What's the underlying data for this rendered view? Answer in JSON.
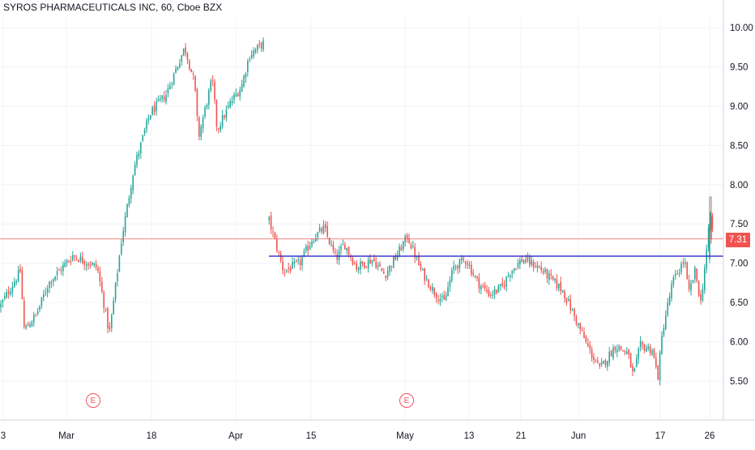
{
  "chart_data": {
    "type": "candlestick",
    "title": "SYROS PHARMACEUTICALS INC, 60, Cboe BZX",
    "y_axis": {
      "position": "right",
      "range": [
        5.3,
        10.15
      ],
      "ticks": [
        "10.00",
        "9.50",
        "9.00",
        "8.50",
        "8.00",
        "7.50",
        "7.00",
        "6.50",
        "6.00",
        "5.50"
      ]
    },
    "x_axis": {
      "ticks": [
        "3",
        "Mar",
        "18",
        "Apr",
        "15",
        "May",
        "13",
        "21",
        "Jun",
        "17",
        "26"
      ]
    },
    "last_price_label": "7.31",
    "last_price": 7.31,
    "horizontal_line_price": 7.09,
    "grid": true,
    "colors": {
      "up": "#26a69a",
      "down": "#ef5350",
      "support_line": "#2828c8",
      "price_line": "#ef5350",
      "grid": "#f0f3fa",
      "axis_text": "#131722",
      "earnings": "#f7525f"
    },
    "earnings_markers": [
      {
        "label": "E",
        "near_tick": "Mar"
      },
      {
        "label": "E",
        "near_tick": "May"
      }
    ],
    "price_path": [
      [
        0,
        6.45
      ],
      [
        25,
        6.9
      ],
      [
        30,
        6.15
      ],
      [
        45,
        6.35
      ],
      [
        60,
        6.75
      ],
      [
        90,
        7.1
      ],
      [
        120,
        6.95
      ],
      [
        135,
        6.1
      ],
      [
        150,
        7.3
      ],
      [
        165,
        8.2
      ],
      [
        185,
        8.9
      ],
      [
        205,
        9.15
      ],
      [
        228,
        9.75
      ],
      [
        240,
        9.3
      ],
      [
        245,
        8.6
      ],
      [
        262,
        9.35
      ],
      [
        268,
        8.7
      ],
      [
        285,
        9.05
      ],
      [
        298,
        9.25
      ],
      [
        308,
        9.65
      ],
      [
        325,
        9.8
      ],
      [
        332,
        7.55
      ],
      [
        350,
        6.9
      ],
      [
        370,
        7.0
      ],
      [
        385,
        7.3
      ],
      [
        400,
        7.45
      ],
      [
        415,
        7.05
      ],
      [
        425,
        7.25
      ],
      [
        440,
        6.95
      ],
      [
        460,
        7.05
      ],
      [
        475,
        6.85
      ],
      [
        490,
        7.1
      ],
      [
        503,
        7.35
      ],
      [
        520,
        6.9
      ],
      [
        535,
        6.65
      ],
      [
        548,
        6.5
      ],
      [
        560,
        6.95
      ],
      [
        575,
        7.05
      ],
      [
        590,
        6.75
      ],
      [
        605,
        6.6
      ],
      [
        620,
        6.7
      ],
      [
        630,
        6.9
      ],
      [
        645,
        7.05
      ],
      [
        665,
        6.95
      ],
      [
        680,
        6.8
      ],
      [
        695,
        6.65
      ],
      [
        710,
        6.3
      ],
      [
        725,
        5.95
      ],
      [
        740,
        5.65
      ],
      [
        760,
        5.95
      ],
      [
        775,
        5.85
      ],
      [
        782,
        5.55
      ],
      [
        790,
        5.95
      ],
      [
        805,
        5.9
      ],
      [
        812,
        5.55
      ],
      [
        818,
        6.15
      ],
      [
        830,
        6.75
      ],
      [
        845,
        7.05
      ],
      [
        850,
        6.6
      ],
      [
        858,
        6.9
      ],
      [
        865,
        6.5
      ],
      [
        872,
        7.15
      ],
      [
        878,
        7.7
      ],
      [
        880,
        7.31
      ]
    ]
  }
}
